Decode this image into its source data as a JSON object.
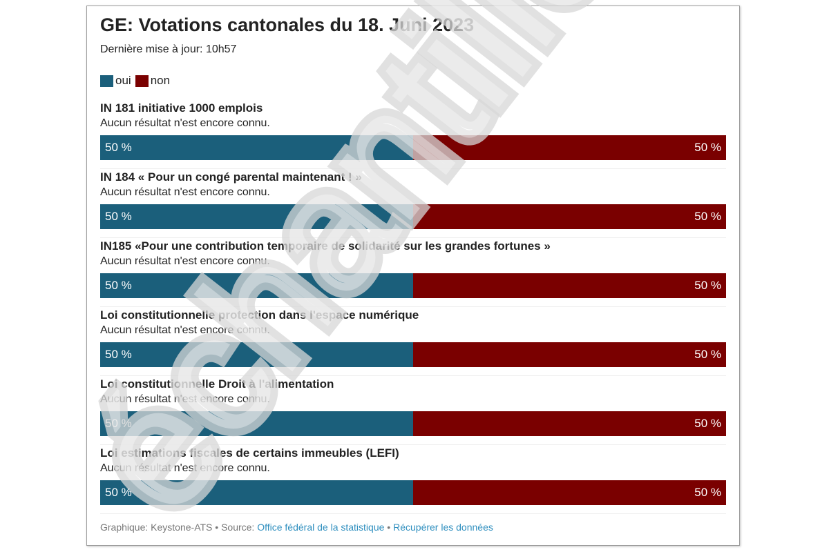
{
  "title": "GE: Votations cantonales du 18. Juni 2023",
  "subtitle": "Dernière mise à jour: 10h57",
  "legend": [
    {
      "label": "oui",
      "color": "#1b5f7b"
    },
    {
      "label": "non",
      "color": "#7a0000"
    }
  ],
  "chart_data": {
    "type": "bar",
    "stacked": true,
    "orientation": "horizontal",
    "categories": [
      "IN 181 initiative 1000 emplois",
      "IN 184 « Pour un congé parental maintenant ! »",
      "IN185 «Pour une contribution temporaire de solidarité sur les grandes fortunes »",
      "Loi constitutionnelle protection dans l'espace numérique",
      "Loi constitutionnelle Droit à l'alimentation",
      "Loi estimations fiscales de certains immeubles (LEFI)"
    ],
    "notes": [
      "Aucun résultat n'est encore connu.",
      "Aucun résultat n'est encore connu.",
      "Aucun résultat n'est encore connu.",
      "Aucun résultat n'est encore connu.",
      "Aucun résultat n'est encore connu.",
      "Aucun résultat n'est encore connu."
    ],
    "series": [
      {
        "name": "oui",
        "values": [
          50,
          50,
          50,
          50,
          50,
          50
        ],
        "color": "#1b5f7b"
      },
      {
        "name": "non",
        "values": [
          50,
          50,
          50,
          50,
          50,
          50
        ],
        "color": "#7a0000"
      }
    ],
    "value_suffix": " %",
    "xlim": [
      0,
      100
    ]
  },
  "footer": {
    "graphic": "Graphique: Keystone-ATS",
    "sep": " • ",
    "source_label": "Source: ",
    "source_link": "Office fédéral de la statistique",
    "data_link": "Récupérer les données"
  },
  "watermark": "échantillon"
}
